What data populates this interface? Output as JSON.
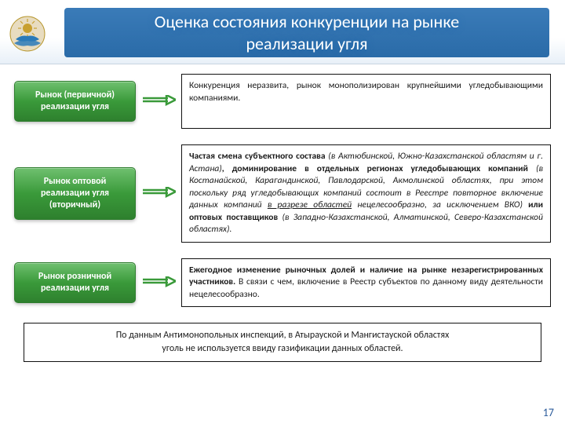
{
  "header": {
    "title_line1": "Оценка состояния конкуренции на рынке",
    "title_line2": "реализации угля"
  },
  "emblem": {
    "circle_fill": "#e8dcc0",
    "sun_fill": "#c8a030",
    "wing_fill": "#2a7ab8",
    "border_stroke": "#b89830"
  },
  "label_button_style": {
    "gradient_top": "#6fc06f",
    "gradient_mid": "#3a9a3a",
    "gradient_bottom": "#2e802e",
    "border": "#2e7d2e",
    "text_color": "#ffffff",
    "font_size": 12,
    "font_weight": "bold"
  },
  "arrow_style": {
    "stroke": "#3a9a3a",
    "stroke_width": 2.5,
    "width": 44,
    "height": 16
  },
  "desc_box_style": {
    "border_color": "#111111",
    "border_width": 1.5,
    "font_size": 11.5,
    "text_color": "#1a1a1a"
  },
  "rows": [
    {
      "label": "Рынок (первичной) реализации угля",
      "min_height": 70,
      "desc_parts": [
        {
          "t": "Конкуренция неразвита, рынок монополизирован крупнейшими угледобывающими компаниями."
        }
      ]
    },
    {
      "label": "Рынок оптовой реализации угля (вторичный)",
      "min_height": 0,
      "desc_parts": [
        {
          "t": "Частая смена субъектного состава ",
          "cls": "b"
        },
        {
          "t": "(в Актюбинской, Южно-Казахстанской областям и г. Астана)",
          "cls": "i"
        },
        {
          "t": ", доминирование в отдельных регионах угледобывающих компаний ",
          "cls": "b"
        },
        {
          "t": "(в Костанайской, Карагандинской, Павлодарской, Акмолинской областях, при этом поскольку ряд угледобывающих компаний состоит в Реестре повторное включение данных компаний ",
          "cls": "i"
        },
        {
          "t": "в разрезе областей",
          "cls": "i u"
        },
        {
          "t": " нецелесообразно, за исключением ВКО)",
          "cls": "i"
        },
        {
          "t": " или оптовых поставщиков ",
          "cls": "b"
        },
        {
          "t": "(в Западно-Казахстанской, Алматинской, Северо-Казахстанской областях).",
          "cls": "i"
        }
      ]
    },
    {
      "label": "Рынок розничной реализации угля",
      "min_height": 0,
      "desc_parts": [
        {
          "t": "Ежегодное изменение рыночных долей и наличие на рынке незарегистрированных участников.",
          "cls": "b"
        },
        {
          "t": " В связи с чем, включение в Реестр субъектов по данному виду деятельности нецелесообразно."
        }
      ]
    }
  ],
  "footer": {
    "parts": [
      {
        "t": "По данным Антимонопольных инспекций, "
      },
      {
        "t": "в Атырауской и Мангистауской областях",
        "cls": "b"
      },
      {
        "t": "\n"
      },
      {
        "t": "уголь не используется ввиду газификации данных областей.",
        "cls": "b"
      }
    ]
  },
  "page_number": "17"
}
